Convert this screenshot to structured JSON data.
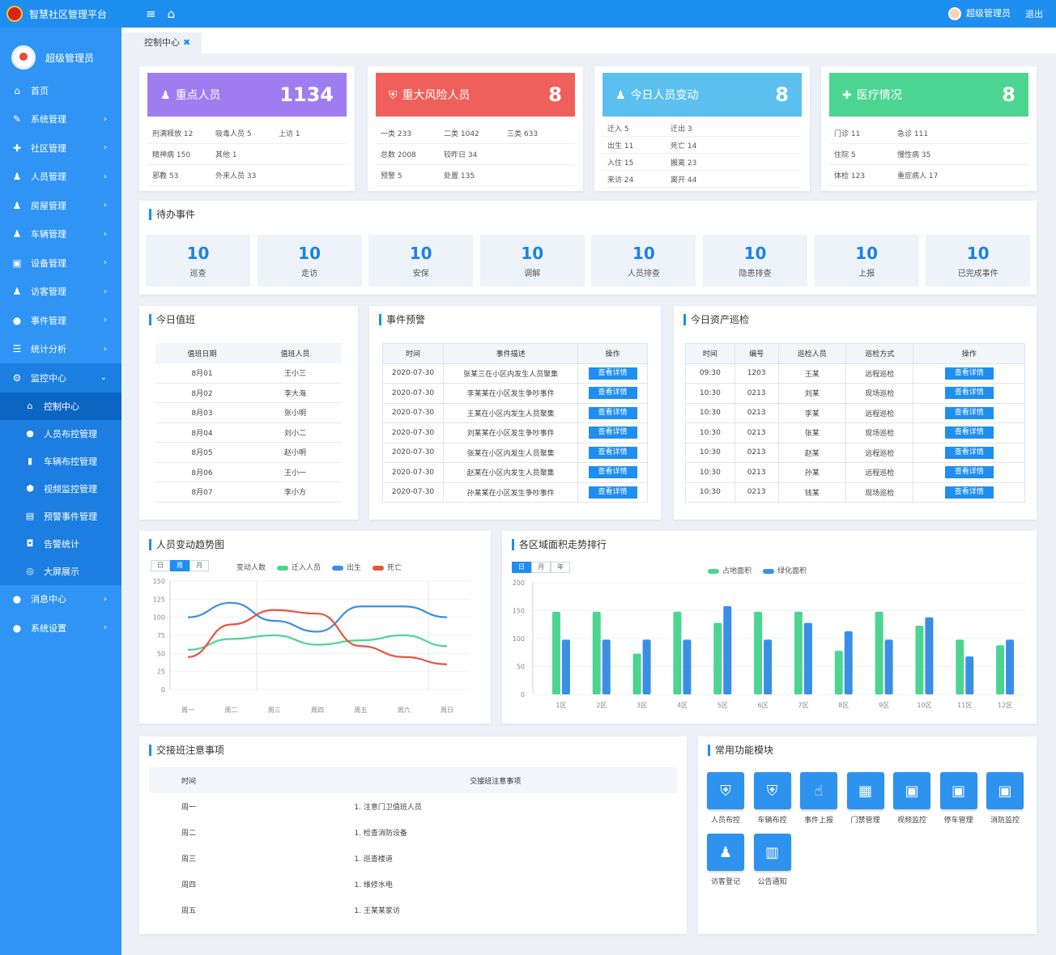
{
  "app": {
    "title": "智慧社区管理平台"
  },
  "top": {
    "menu_icon": "≡",
    "home_icon": "⌂",
    "user_name": "超级管理员",
    "logout": "退出"
  },
  "sidebar": {
    "profile_name": "超级管理员",
    "items_before": [
      {
        "icon": "⌂",
        "label": "首页",
        "chevron": ""
      },
      {
        "icon": "✎",
        "label": "系统管理",
        "chevron": "›"
      },
      {
        "icon": "✚",
        "label": "社区管理",
        "chevron": "›"
      },
      {
        "icon": "♟",
        "label": "人员管理",
        "chevron": "›"
      },
      {
        "icon": "♟",
        "label": "房屋管理",
        "chevron": "›"
      },
      {
        "icon": "♟",
        "label": "车辆管理",
        "chevron": "›"
      },
      {
        "icon": "▣",
        "label": "设备管理",
        "chevron": "›"
      },
      {
        "icon": "♟",
        "label": "访客管理",
        "chevron": "›"
      },
      {
        "icon": "●",
        "label": "事件管理",
        "chevron": "›"
      },
      {
        "icon": "☰",
        "label": "统计分析",
        "chevron": "›"
      }
    ],
    "open_item": {
      "icon": "⚙",
      "label": "监控中心",
      "chevron": "⌄"
    },
    "sub_items": [
      {
        "icon": "⌂",
        "label": "控制中心"
      },
      {
        "icon": "●",
        "label": "人员布控管理"
      },
      {
        "icon": "▮",
        "label": "车辆布控管理"
      },
      {
        "icon": "⬢",
        "label": "视频监控管理"
      },
      {
        "icon": "▤",
        "label": "预警事件管理"
      },
      {
        "icon": "◘",
        "label": "告警统计"
      },
      {
        "icon": "◎",
        "label": "大屏展示"
      }
    ],
    "items_after": [
      {
        "icon": "●",
        "label": "消息中心",
        "chevron": "›"
      },
      {
        "icon": "●",
        "label": "系统设置",
        "chevron": "›"
      }
    ]
  },
  "tab": {
    "label": "控制中心",
    "close": "✖"
  },
  "kpis": [
    {
      "icon": "♟",
      "title": "重点人员",
      "value": "1134",
      "color": "#9f7df0",
      "rows": [
        [
          "刑满释放 12",
          "吸毒人员 5",
          "上访 1"
        ],
        [
          "精神病 150",
          "其他 1",
          ""
        ],
        [
          "邪教 53",
          "外来人员 33",
          ""
        ]
      ]
    },
    {
      "icon": "⛨",
      "title": "重大风险人员",
      "value": "8",
      "color": "#f0605a",
      "rows": [
        [
          "一类 233",
          "二类 1042",
          "三类 633"
        ],
        [
          "总数 2008",
          "较昨日 34",
          ""
        ],
        [
          "预警 5",
          "处置 135",
          ""
        ]
      ]
    },
    {
      "icon": "♟",
      "title": "今日人员变动",
      "value": "8",
      "color": "#5bc0f0",
      "rows": [
        [
          "迁入 5",
          "迁出 3",
          ""
        ],
        [
          "出生 11",
          "死亡 14",
          ""
        ],
        [
          "入住 15",
          "搬离 23",
          ""
        ],
        [
          "来访 24",
          "离开 44",
          ""
        ]
      ]
    },
    {
      "icon": "✚",
      "title": "医疗情况",
      "value": "8",
      "color": "#4cd591",
      "rows": [
        [
          "门诊 11",
          "急诊 111",
          ""
        ],
        [
          "住院 5",
          "慢性病 35",
          ""
        ],
        [
          "体检 123",
          "重症病人 17",
          ""
        ]
      ]
    }
  ],
  "todo": {
    "title": "待办事件",
    "items": [
      {
        "value": "10",
        "label": "巡查"
      },
      {
        "value": "10",
        "label": "走访"
      },
      {
        "value": "10",
        "label": "安保"
      },
      {
        "value": "10",
        "label": "调解"
      },
      {
        "value": "10",
        "label": "人员排查"
      },
      {
        "value": "10",
        "label": "隐患排查"
      },
      {
        "value": "10",
        "label": "上报"
      },
      {
        "value": "10",
        "label": "已完成事件"
      }
    ]
  },
  "duty": {
    "title": "今日值班",
    "headers": [
      "值班日期",
      "值班人员"
    ],
    "rows": [
      [
        "8月01",
        "王小三"
      ],
      [
        "8月02",
        "李大海"
      ],
      [
        "8月03",
        "张小明"
      ],
      [
        "8月04",
        "刘小二"
      ],
      [
        "8月05",
        "赵小明"
      ],
      [
        "8月06",
        "王小一"
      ],
      [
        "8月07",
        "李小方"
      ]
    ]
  },
  "events": {
    "title": "事件预警",
    "headers": [
      "时间",
      "事件描述",
      "操作"
    ],
    "rows": [
      [
        "2020-07-30",
        "张某三在小区内发生人员聚集",
        "查看详情"
      ],
      [
        "2020-07-30",
        "李某某在小区发生争吵事件",
        "查看详情"
      ],
      [
        "2020-07-30",
        "王某在小区内发生人员聚集",
        "查看详情"
      ],
      [
        "2020-07-30",
        "刘某某在小区发生争吵事件",
        "查看详情"
      ],
      [
        "2020-07-30",
        "张某在小区内发生人员聚集",
        "查看详情"
      ],
      [
        "2020-07-30",
        "赵某在小区内发生人员聚集",
        "查看详情"
      ],
      [
        "2020-07-30",
        "孙某某在小区发生争吵事件",
        "查看详情"
      ]
    ]
  },
  "assets": {
    "title": "今日资产巡检",
    "headers": [
      "时间",
      "编号",
      "巡检人员",
      "巡检方式",
      "操作"
    ],
    "rows": [
      [
        "09:30",
        "1203",
        "王某",
        "远程巡检",
        "查看详情"
      ],
      [
        "10:30",
        "0213",
        "刘某",
        "现场巡检",
        "查看详情"
      ],
      [
        "10:30",
        "0213",
        "李某",
        "远程巡检",
        "查看详情"
      ],
      [
        "10:30",
        "0213",
        "张某",
        "现场巡检",
        "查看详情"
      ],
      [
        "10:30",
        "0213",
        "赵某",
        "远程巡检",
        "查看详情"
      ],
      [
        "10:30",
        "0213",
        "孙某",
        "远程巡检",
        "查看详情"
      ],
      [
        "10:30",
        "0213",
        "钱某",
        "现场巡检",
        "查看详情"
      ]
    ]
  },
  "trend": {
    "title": "人员变动趋势图",
    "tabs": [
      "日",
      "周",
      "月"
    ],
    "legend_label": "变动人数",
    "series_names": [
      "迁入人员",
      "出生",
      "死亡"
    ],
    "colors": [
      "#4cd591",
      "#3a8ee6",
      "#e8533f"
    ]
  },
  "bars": {
    "title": "各区域面积走势排行",
    "tabs": [
      "日",
      "月",
      "年"
    ],
    "series_names": [
      "占地面积",
      "绿化面积"
    ],
    "colors": [
      "#4cd591",
      "#3a8ee6"
    ]
  },
  "chart_data": [
    {
      "type": "line",
      "title": "人员变动趋势图",
      "x": [
        "周一",
        "周二",
        "周三",
        "周四",
        "周五",
        "周六",
        "周日"
      ],
      "ylim": [
        0,
        150
      ],
      "series": [
        {
          "name": "迁入人员",
          "values": [
            55,
            70,
            75,
            62,
            68,
            75,
            60
          ]
        },
        {
          "name": "出生",
          "values": [
            100,
            120,
            95,
            80,
            115,
            115,
            100
          ]
        },
        {
          "name": "死亡",
          "values": [
            45,
            90,
            110,
            105,
            60,
            45,
            35
          ]
        }
      ]
    },
    {
      "type": "bar",
      "title": "各区域面积走势排行",
      "categories": [
        "1区",
        "2区",
        "3区",
        "4区",
        "5区",
        "6区",
        "7区",
        "8区",
        "9区",
        "10区",
        "11区",
        "12区"
      ],
      "ylim": [
        0,
        200
      ],
      "series": [
        {
          "name": "占地面积",
          "values": [
            148,
            148,
            73,
            148,
            128,
            148,
            148,
            78,
            148,
            123,
            98,
            88
          ]
        },
        {
          "name": "绿化面积",
          "values": [
            98,
            98,
            98,
            98,
            158,
            98,
            128,
            113,
            98,
            138,
            68,
            98
          ]
        }
      ]
    }
  ],
  "handover": {
    "title": "交接班注意事项",
    "headers": [
      "时间",
      "交接班注意事项"
    ],
    "rows": [
      [
        "周一",
        "1. 注意门卫值班人员"
      ],
      [
        "周二",
        "1. 检查消防设备"
      ],
      [
        "周三",
        "1. 巡查楼道"
      ],
      [
        "周四",
        "1. 维修水电"
      ],
      [
        "周五",
        "1. 王某某家访"
      ]
    ]
  },
  "modules": {
    "title": "常用功能模块",
    "tiles": [
      {
        "icon": "⛨",
        "label": "人员布控"
      },
      {
        "icon": "⛨",
        "label": "车辆布控"
      },
      {
        "icon": "☝",
        "label": "事件上报"
      },
      {
        "icon": "▦",
        "label": "门禁管理"
      },
      {
        "icon": "▣",
        "label": "视频监控"
      },
      {
        "icon": "▣",
        "label": "停车管理"
      },
      {
        "icon": "▣",
        "label": "消防监控"
      },
      {
        "icon": "♟",
        "label": "访客登记"
      },
      {
        "icon": "▥",
        "label": "公告通知"
      }
    ]
  }
}
